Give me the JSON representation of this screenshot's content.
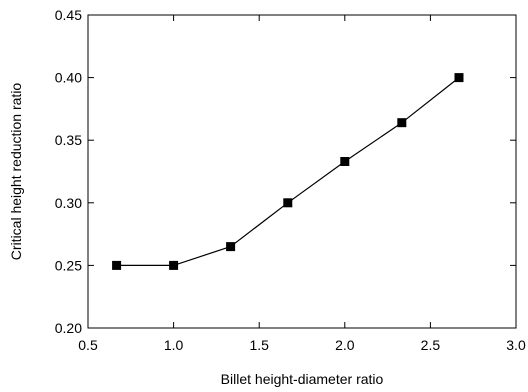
{
  "chart_data": {
    "type": "line",
    "title": "",
    "xlabel": "Billet height-diameter ratio",
    "ylabel": "Critical height reduction ratio",
    "xlim": [
      0.5,
      3.0
    ],
    "ylim": [
      0.2,
      0.45
    ],
    "xticks": [
      0.5,
      1.0,
      1.5,
      2.0,
      2.5,
      3.0
    ],
    "xtick_labels": [
      "0.5",
      "1.0",
      "1.5",
      "2.0",
      "2.5",
      "3.0"
    ],
    "yticks": [
      0.2,
      0.25,
      0.3,
      0.35,
      0.4,
      0.45
    ],
    "ytick_labels": [
      "0.20",
      "0.25",
      "0.30",
      "0.35",
      "0.40",
      "0.45"
    ],
    "grid": false,
    "series": [
      {
        "x": [
          0.667,
          1.0,
          1.333,
          1.667,
          2.0,
          2.333,
          2.667
        ],
        "y": [
          0.25,
          0.25,
          0.265,
          0.3,
          0.333,
          0.364,
          0.4
        ],
        "marker": "square",
        "color": "#000000"
      }
    ]
  }
}
